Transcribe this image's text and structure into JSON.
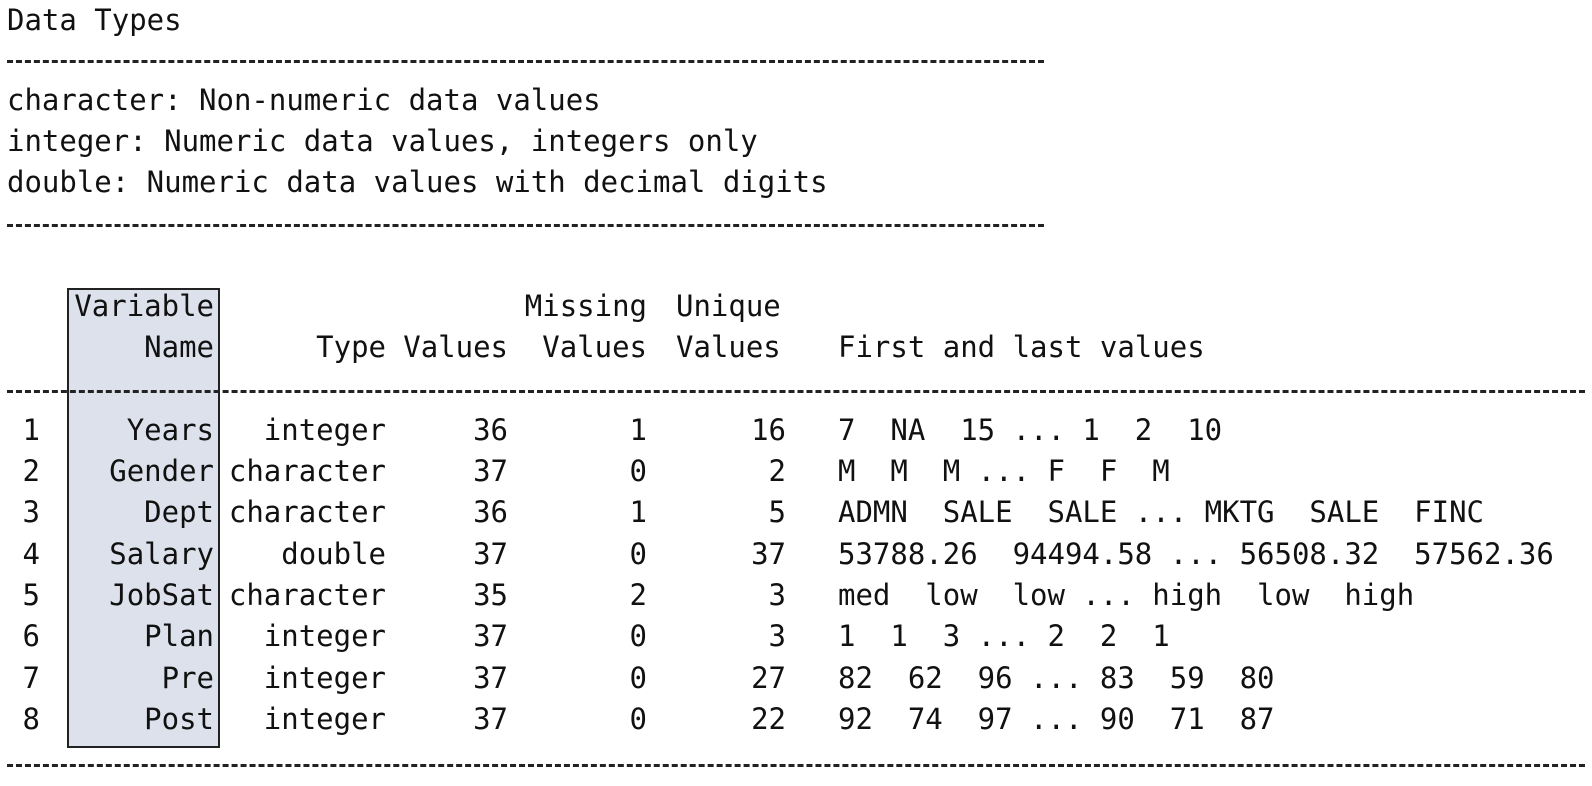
{
  "header": {
    "title": "Data Types",
    "rule": "------------------------------------------------------------",
    "lines": [
      "character: Non-numeric data values",
      "integer: Numeric data values, integers only",
      "double: Numeric data values with decimal digits"
    ]
  },
  "table": {
    "headers": {
      "name_line1": "Variable",
      "name_line2": "Name",
      "type": "Type",
      "values": "Values",
      "missing_line1": "Missing",
      "missing_line2": "Values",
      "unique_line1": "Unique",
      "unique_line2": "Values",
      "first_last": "First and last values"
    },
    "rows": [
      {
        "idx": "1",
        "name": "Years",
        "type": "integer",
        "values": "36",
        "missing": "1",
        "unique": "16",
        "first_last": "7  NA  15 ... 1  2  10"
      },
      {
        "idx": "2",
        "name": "Gender",
        "type": "character",
        "values": "37",
        "missing": "0",
        "unique": "2",
        "first_last": "M  M  M ... F  F  M"
      },
      {
        "idx": "3",
        "name": "Dept",
        "type": "character",
        "values": "36",
        "missing": "1",
        "unique": "5",
        "first_last": "ADMN  SALE  SALE ... MKTG  SALE  FINC"
      },
      {
        "idx": "4",
        "name": "Salary",
        "type": "double",
        "values": "37",
        "missing": "0",
        "unique": "37",
        "first_last": "53788.26  94494.58 ... 56508.32  57562.36"
      },
      {
        "idx": "5",
        "name": "JobSat",
        "type": "character",
        "values": "35",
        "missing": "2",
        "unique": "3",
        "first_last": "med  low  low ... high  low  high"
      },
      {
        "idx": "6",
        "name": "Plan",
        "type": "integer",
        "values": "37",
        "missing": "0",
        "unique": "3",
        "first_last": "1  1  3 ... 2  2  1"
      },
      {
        "idx": "7",
        "name": "Pre",
        "type": "integer",
        "values": "37",
        "missing": "0",
        "unique": "27",
        "first_last": "82  62  96 ... 83  59  80"
      },
      {
        "idx": "8",
        "name": "Post",
        "type": "integer",
        "values": "37",
        "missing": "0",
        "unique": "22",
        "first_last": "92  74  97 ... 90  71  87"
      }
    ]
  }
}
